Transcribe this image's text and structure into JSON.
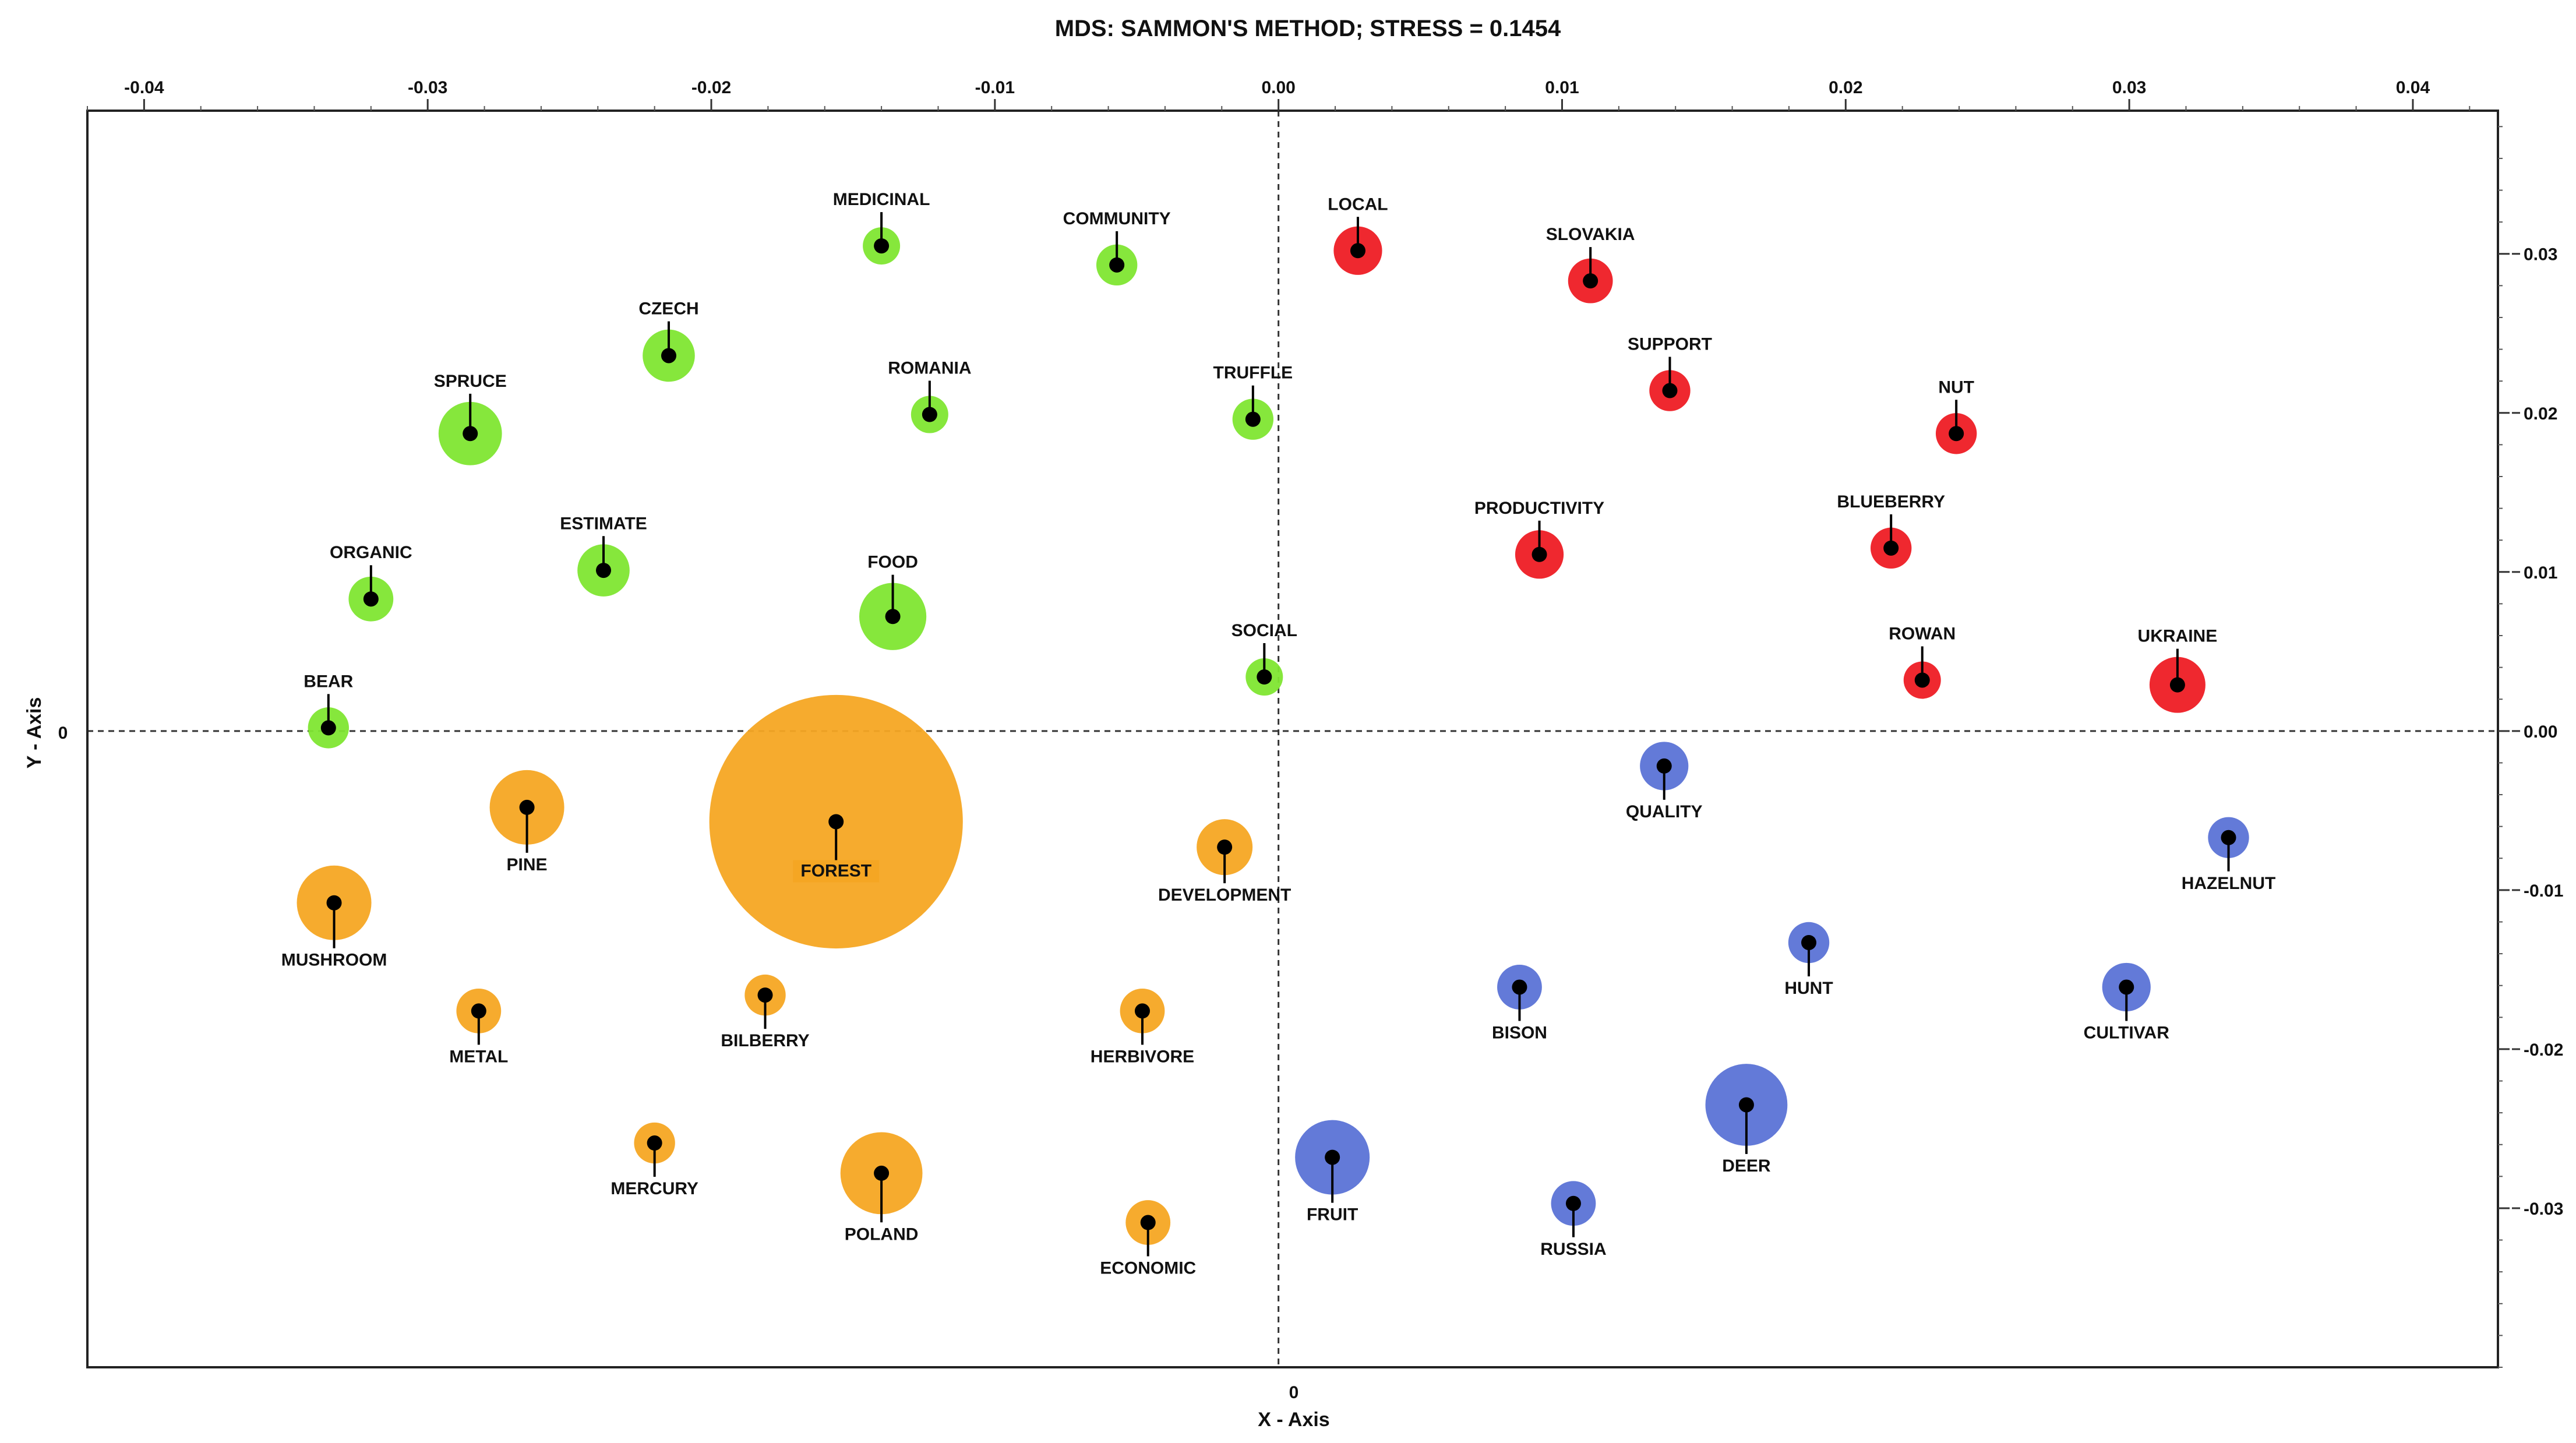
{
  "chart_data": {
    "type": "scatter",
    "title": "MDS: SAMMON'S METHOD; STRESS = 0.1454",
    "xlabel": "X - Axis",
    "ylabel": "Y - Axis",
    "xlim": [
      -0.042,
      0.043
    ],
    "ylim": [
      -0.04,
      0.039
    ],
    "x_ticks": [
      {
        "value": -0.04,
        "label": "-0.04"
      },
      {
        "value": -0.03,
        "label": "-0.03"
      },
      {
        "value": -0.02,
        "label": "-0.02"
      },
      {
        "value": -0.01,
        "label": "-0.01"
      },
      {
        "value": 0.0,
        "label": "0.00"
      },
      {
        "value": 0.01,
        "label": "0.01"
      },
      {
        "value": 0.02,
        "label": "0.02"
      },
      {
        "value": 0.03,
        "label": "0.03"
      },
      {
        "value": 0.04,
        "label": "0.04"
      }
    ],
    "y_ticks": [
      {
        "value": 0.03,
        "label": "0.03"
      },
      {
        "value": 0.02,
        "label": "0.02"
      },
      {
        "value": 0.01,
        "label": "0.01"
      },
      {
        "value": 0.0,
        "label": "0.00"
      },
      {
        "value": -0.01,
        "label": "-0.01"
      },
      {
        "value": -0.02,
        "label": "-0.02"
      },
      {
        "value": -0.03,
        "label": "-0.03"
      }
    ],
    "zero_labels": {
      "x": "0",
      "y": "0"
    },
    "clusters": {
      "green": "#7fe632",
      "red": "#ee1c24",
      "orange": "#f5a623",
      "blue": "#5b73d6"
    },
    "points": [
      {
        "label": "MEDICINAL",
        "x": -0.014,
        "y": 0.0305,
        "size": 1.0,
        "cluster": "green",
        "label_pos": "above"
      },
      {
        "label": "COMMUNITY",
        "x": -0.0057,
        "y": 0.0293,
        "size": 1.1,
        "cluster": "green",
        "label_pos": "above"
      },
      {
        "label": "CZECH",
        "x": -0.0215,
        "y": 0.0236,
        "size": 1.4,
        "cluster": "green",
        "label_pos": "above"
      },
      {
        "label": "ROMANIA",
        "x": -0.0123,
        "y": 0.0199,
        "size": 1.0,
        "cluster": "green",
        "label_pos": "above"
      },
      {
        "label": "TRUFFLE",
        "x": -0.0009,
        "y": 0.0196,
        "size": 1.1,
        "cluster": "green",
        "label_pos": "above"
      },
      {
        "label": "SPRUCE",
        "x": -0.0285,
        "y": 0.0187,
        "size": 1.7,
        "cluster": "green",
        "label_pos": "above"
      },
      {
        "label": "ESTIMATE",
        "x": -0.0238,
        "y": 0.0101,
        "size": 1.4,
        "cluster": "green",
        "label_pos": "above"
      },
      {
        "label": "ORGANIC",
        "x": -0.032,
        "y": 0.0083,
        "size": 1.2,
        "cluster": "green",
        "label_pos": "above"
      },
      {
        "label": "FOOD",
        "x": -0.0136,
        "y": 0.0072,
        "size": 1.8,
        "cluster": "green",
        "label_pos": "above"
      },
      {
        "label": "SOCIAL",
        "x": -0.0005,
        "y": 0.0034,
        "size": 1.0,
        "cluster": "green",
        "label_pos": "above"
      },
      {
        "label": "BEAR",
        "x": -0.0335,
        "y": 0.0002,
        "size": 1.1,
        "cluster": "green",
        "label_pos": "above"
      },
      {
        "label": "LOCAL",
        "x": 0.0028,
        "y": 0.0302,
        "size": 1.3,
        "cluster": "red",
        "label_pos": "above"
      },
      {
        "label": "SLOVAKIA",
        "x": 0.011,
        "y": 0.0283,
        "size": 1.2,
        "cluster": "red",
        "label_pos": "above"
      },
      {
        "label": "SUPPORT",
        "x": 0.0138,
        "y": 0.0214,
        "size": 1.1,
        "cluster": "red",
        "label_pos": "above"
      },
      {
        "label": "NUT",
        "x": 0.0239,
        "y": 0.0187,
        "size": 1.1,
        "cluster": "red",
        "label_pos": "above"
      },
      {
        "label": "PRODUCTIVITY",
        "x": 0.0092,
        "y": 0.0111,
        "size": 1.3,
        "cluster": "red",
        "label_pos": "above"
      },
      {
        "label": "BLUEBERRY",
        "x": 0.0216,
        "y": 0.0115,
        "size": 1.1,
        "cluster": "red",
        "label_pos": "above"
      },
      {
        "label": "ROWAN",
        "x": 0.0227,
        "y": 0.0032,
        "size": 1.0,
        "cluster": "red",
        "label_pos": "above"
      },
      {
        "label": "UKRAINE",
        "x": 0.0317,
        "y": 0.0029,
        "size": 1.5,
        "cluster": "red",
        "label_pos": "above"
      },
      {
        "label": "FOREST",
        "x": -0.0156,
        "y": -0.0057,
        "size": 6.8,
        "cluster": "orange",
        "label_pos": "inside"
      },
      {
        "label": "PINE",
        "x": -0.0265,
        "y": -0.0048,
        "size": 2.0,
        "cluster": "orange",
        "label_pos": "below"
      },
      {
        "label": "MUSHROOM",
        "x": -0.0333,
        "y": -0.0108,
        "size": 2.0,
        "cluster": "orange",
        "label_pos": "below"
      },
      {
        "label": "DEVELOPMENT",
        "x": -0.0019,
        "y": -0.0073,
        "size": 1.5,
        "cluster": "orange",
        "label_pos": "below"
      },
      {
        "label": "METAL",
        "x": -0.0282,
        "y": -0.0176,
        "size": 1.2,
        "cluster": "orange",
        "label_pos": "below"
      },
      {
        "label": "BILBERRY",
        "x": -0.0181,
        "y": -0.0166,
        "size": 1.1,
        "cluster": "orange",
        "label_pos": "below"
      },
      {
        "label": "HERBIVORE",
        "x": -0.0048,
        "y": -0.0176,
        "size": 1.2,
        "cluster": "orange",
        "label_pos": "below"
      },
      {
        "label": "MERCURY",
        "x": -0.022,
        "y": -0.0259,
        "size": 1.1,
        "cluster": "orange",
        "label_pos": "below"
      },
      {
        "label": "POLAND",
        "x": -0.014,
        "y": -0.0278,
        "size": 2.2,
        "cluster": "orange",
        "label_pos": "below"
      },
      {
        "label": "ECONOMIC",
        "x": -0.0046,
        "y": -0.0309,
        "size": 1.2,
        "cluster": "orange",
        "label_pos": "below"
      },
      {
        "label": "QUALITY",
        "x": 0.0136,
        "y": -0.0022,
        "size": 1.3,
        "cluster": "blue",
        "label_pos": "below"
      },
      {
        "label": "HAZELNUT",
        "x": 0.0335,
        "y": -0.0067,
        "size": 1.1,
        "cluster": "blue",
        "label_pos": "below"
      },
      {
        "label": "HUNT",
        "x": 0.0187,
        "y": -0.0133,
        "size": 1.1,
        "cluster": "blue",
        "label_pos": "below"
      },
      {
        "label": "BISON",
        "x": 0.0085,
        "y": -0.0161,
        "size": 1.2,
        "cluster": "blue",
        "label_pos": "below"
      },
      {
        "label": "CULTIVAR",
        "x": 0.0299,
        "y": -0.0161,
        "size": 1.3,
        "cluster": "blue",
        "label_pos": "below"
      },
      {
        "label": "DEER",
        "x": 0.0165,
        "y": -0.0235,
        "size": 2.2,
        "cluster": "blue",
        "label_pos": "below"
      },
      {
        "label": "FRUIT",
        "x": 0.0019,
        "y": -0.0268,
        "size": 2.0,
        "cluster": "blue",
        "label_pos": "below"
      },
      {
        "label": "RUSSIA",
        "x": 0.0104,
        "y": -0.0297,
        "size": 1.2,
        "cluster": "blue",
        "label_pos": "below"
      }
    ]
  }
}
